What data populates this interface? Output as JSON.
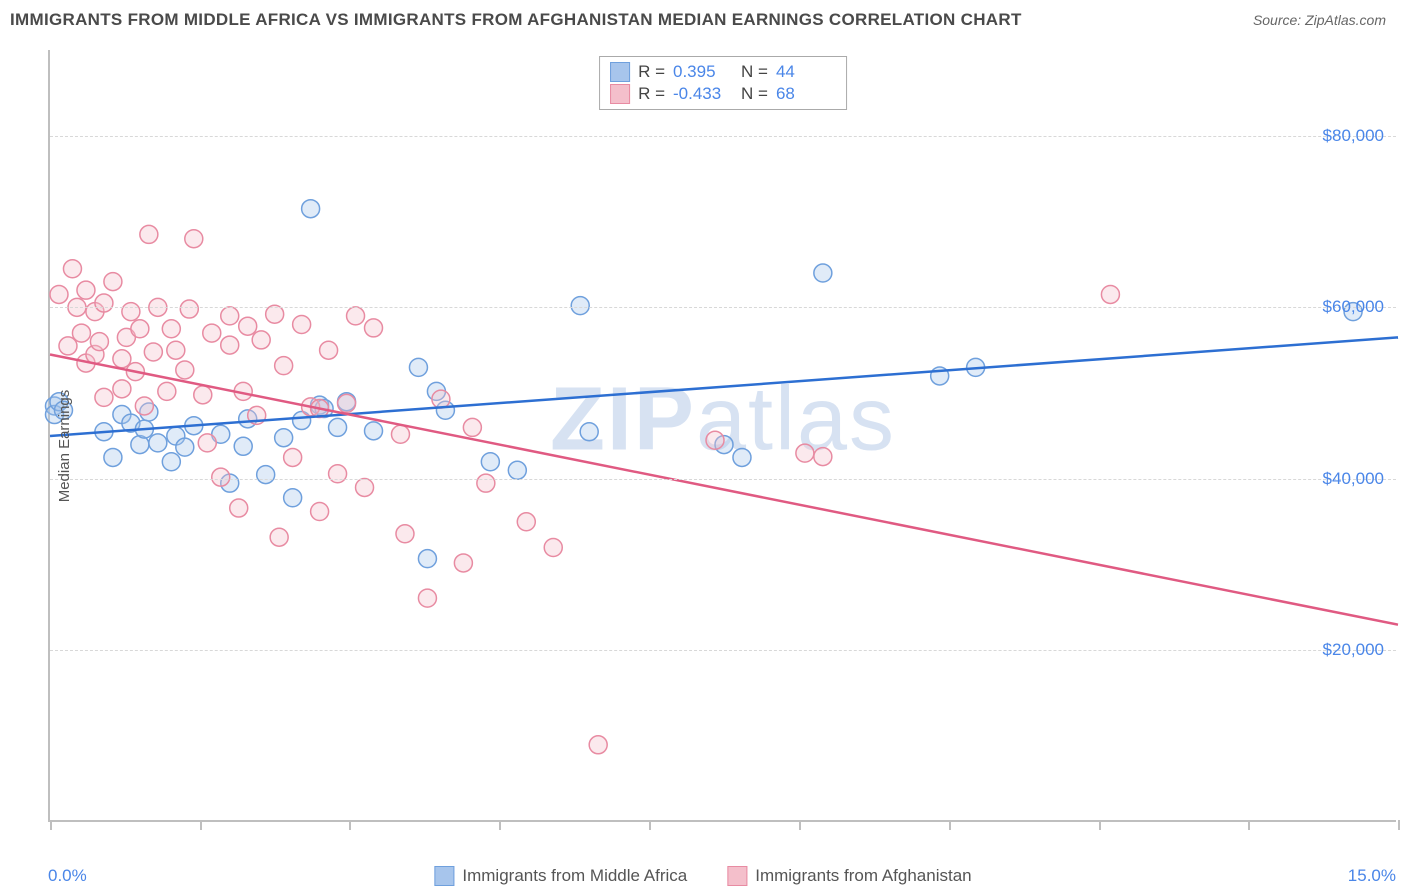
{
  "title": "IMMIGRANTS FROM MIDDLE AFRICA VS IMMIGRANTS FROM AFGHANISTAN MEDIAN EARNINGS CORRELATION CHART",
  "source": "Source: ZipAtlas.com",
  "watermark": "ZIPatlas",
  "chart": {
    "type": "scatter",
    "ylabel": "Median Earnings",
    "xlim": [
      0,
      15
    ],
    "ylim": [
      0,
      90000
    ],
    "x_axis_labels": {
      "min": "0.0%",
      "max": "15.0%"
    },
    "y_ticks": [
      20000,
      40000,
      60000,
      80000
    ],
    "y_tick_labels": [
      "$20,000",
      "$40,000",
      "$60,000",
      "$80,000"
    ],
    "x_tick_positions": [
      0,
      1.67,
      3.33,
      5.0,
      6.67,
      8.33,
      10.0,
      11.67,
      13.33,
      15.0
    ],
    "background_color": "#ffffff",
    "grid_color": "#d8d8d8",
    "marker_radius": 9,
    "marker_fill_opacity": 0.35,
    "marker_stroke_width": 1.5,
    "series": [
      {
        "name": "Immigrants from Middle Africa",
        "color_fill": "#a7c5ec",
        "color_stroke": "#6fa0dd",
        "line_color": "#2d6fd2",
        "R": "0.395",
        "N": "44",
        "trend": {
          "x1": 0,
          "y1": 45000,
          "x2": 15,
          "y2": 56500
        },
        "points": [
          [
            0.05,
            48500
          ],
          [
            0.05,
            47500
          ],
          [
            0.1,
            49000
          ],
          [
            0.15,
            48000
          ],
          [
            0.6,
            45500
          ],
          [
            0.7,
            42500
          ],
          [
            0.8,
            47500
          ],
          [
            0.9,
            46500
          ],
          [
            1.0,
            44000
          ],
          [
            1.05,
            45800
          ],
          [
            1.1,
            47800
          ],
          [
            1.2,
            44200
          ],
          [
            1.35,
            42000
          ],
          [
            1.4,
            45000
          ],
          [
            1.5,
            43700
          ],
          [
            1.6,
            46200
          ],
          [
            1.9,
            45200
          ],
          [
            2.0,
            39500
          ],
          [
            2.15,
            43800
          ],
          [
            2.2,
            47000
          ],
          [
            2.4,
            40500
          ],
          [
            2.6,
            44800
          ],
          [
            2.7,
            37800
          ],
          [
            2.8,
            46800
          ],
          [
            2.9,
            71500
          ],
          [
            3.0,
            48600
          ],
          [
            3.05,
            48200
          ],
          [
            3.2,
            46000
          ],
          [
            3.3,
            49000
          ],
          [
            3.6,
            45600
          ],
          [
            4.1,
            53000
          ],
          [
            4.2,
            30700
          ],
          [
            4.3,
            50200
          ],
          [
            4.4,
            48000
          ],
          [
            4.9,
            42000
          ],
          [
            5.2,
            41000
          ],
          [
            5.9,
            60200
          ],
          [
            6.0,
            45500
          ],
          [
            7.5,
            44000
          ],
          [
            7.7,
            42500
          ],
          [
            8.6,
            64000
          ],
          [
            9.9,
            52000
          ],
          [
            10.3,
            53000
          ],
          [
            14.5,
            59500
          ]
        ]
      },
      {
        "name": "Immigrants from Afghanistan",
        "color_fill": "#f4bfcb",
        "color_stroke": "#e88ba2",
        "line_color": "#e05a82",
        "R": "-0.433",
        "N": "68",
        "trend": {
          "x1": 0,
          "y1": 54500,
          "x2": 15,
          "y2": 23000
        },
        "points": [
          [
            0.1,
            61500
          ],
          [
            0.2,
            55500
          ],
          [
            0.25,
            64500
          ],
          [
            0.3,
            60000
          ],
          [
            0.35,
            57000
          ],
          [
            0.4,
            62000
          ],
          [
            0.4,
            53500
          ],
          [
            0.5,
            59500
          ],
          [
            0.5,
            54500
          ],
          [
            0.55,
            56000
          ],
          [
            0.6,
            60500
          ],
          [
            0.6,
            49500
          ],
          [
            0.7,
            63000
          ],
          [
            0.8,
            54000
          ],
          [
            0.8,
            50500
          ],
          [
            0.85,
            56500
          ],
          [
            0.9,
            59500
          ],
          [
            0.95,
            52500
          ],
          [
            1.0,
            57500
          ],
          [
            1.05,
            48500
          ],
          [
            1.1,
            68500
          ],
          [
            1.15,
            54800
          ],
          [
            1.2,
            60000
          ],
          [
            1.3,
            50200
          ],
          [
            1.35,
            57500
          ],
          [
            1.4,
            55000
          ],
          [
            1.5,
            52700
          ],
          [
            1.55,
            59800
          ],
          [
            1.6,
            68000
          ],
          [
            1.7,
            49800
          ],
          [
            1.75,
            44200
          ],
          [
            1.8,
            57000
          ],
          [
            1.9,
            40200
          ],
          [
            2.0,
            59000
          ],
          [
            2.0,
            55600
          ],
          [
            2.1,
            36600
          ],
          [
            2.15,
            50200
          ],
          [
            2.2,
            57800
          ],
          [
            2.3,
            47400
          ],
          [
            2.35,
            56200
          ],
          [
            2.5,
            59200
          ],
          [
            2.55,
            33200
          ],
          [
            2.6,
            53200
          ],
          [
            2.7,
            42500
          ],
          [
            2.8,
            58000
          ],
          [
            2.9,
            48400
          ],
          [
            3.0,
            36200
          ],
          [
            3.0,
            48200
          ],
          [
            3.1,
            55000
          ],
          [
            3.2,
            40600
          ],
          [
            3.3,
            48800
          ],
          [
            3.4,
            59000
          ],
          [
            3.5,
            39000
          ],
          [
            3.6,
            57600
          ],
          [
            3.9,
            45200
          ],
          [
            3.95,
            33600
          ],
          [
            4.2,
            26100
          ],
          [
            4.35,
            49300
          ],
          [
            4.6,
            30200
          ],
          [
            4.7,
            46000
          ],
          [
            4.85,
            39500
          ],
          [
            5.3,
            35000
          ],
          [
            5.6,
            32000
          ],
          [
            6.1,
            9000
          ],
          [
            7.4,
            44500
          ],
          [
            8.4,
            43000
          ],
          [
            8.6,
            42600
          ],
          [
            11.8,
            61500
          ]
        ]
      }
    ]
  },
  "legend": {
    "stats_labels": {
      "R": "R =",
      "N": "N ="
    },
    "bottom": [
      "Immigrants from Middle Africa",
      "Immigrants from Afghanistan"
    ]
  }
}
